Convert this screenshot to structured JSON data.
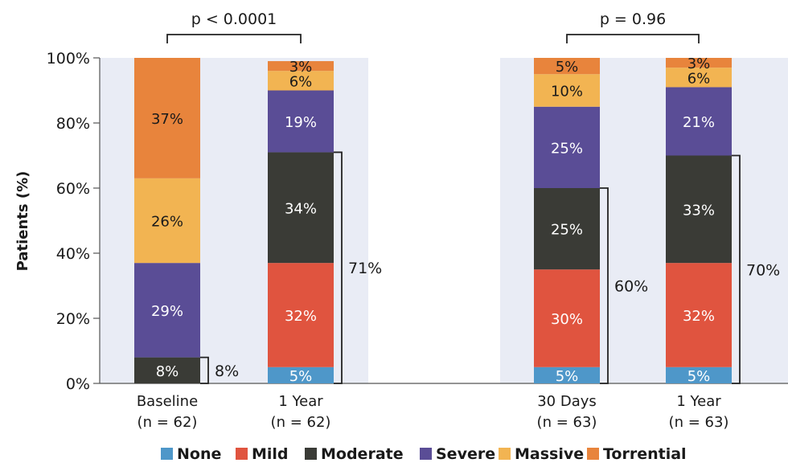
{
  "chart_data": {
    "type": "bar",
    "stacked": true,
    "ylabel": "Patients (%)",
    "ylim": [
      0,
      100
    ],
    "yticks": [
      "0%",
      "20%",
      "40%",
      "60%",
      "80%",
      "100%"
    ],
    "grid": false,
    "legend_position": "bottom",
    "categories": [
      {
        "line1": "Baseline",
        "line2": "(n = 62)"
      },
      {
        "line1": "1 Year",
        "line2": "(n = 62)"
      },
      {
        "line1": "30 Days",
        "line2": "(n = 63)"
      },
      {
        "line1": "1 Year",
        "line2": "(n = 63)"
      }
    ],
    "series": [
      {
        "name": "None",
        "color": "#4e97c9",
        "values": [
          0,
          5,
          5,
          5
        ],
        "labels": [
          "",
          "5%",
          "5%",
          "5%"
        ]
      },
      {
        "name": "Mild",
        "color": "#e0543f",
        "values": [
          0,
          32,
          30,
          32
        ],
        "labels": [
          "",
          "32%",
          "30%",
          "32%"
        ]
      },
      {
        "name": "Moderate",
        "color": "#3a3b36",
        "values": [
          8,
          34,
          25,
          33
        ],
        "labels": [
          "8%",
          "34%",
          "25%",
          "33%"
        ]
      },
      {
        "name": "Severe",
        "color": "#5a4d96",
        "values": [
          29,
          19,
          25,
          21
        ],
        "labels": [
          "29%",
          "19%",
          "25%",
          "21%"
        ]
      },
      {
        "name": "Massive",
        "color": "#f2b452",
        "values": [
          26,
          6,
          10,
          6
        ],
        "labels": [
          "26%",
          "6%",
          "10%",
          "6%"
        ]
      },
      {
        "name": "Torrential",
        "color": "#e8843c",
        "values": [
          37,
          3,
          5,
          3
        ],
        "labels": [
          "37%",
          "3%",
          "5%",
          "3%"
        ]
      }
    ],
    "background_color": "#e9ecf5",
    "brackets": [
      {
        "bar": 0,
        "from": 0,
        "to": 8,
        "label": "8%"
      },
      {
        "bar": 1,
        "from": 0,
        "to": 71,
        "label": "71%"
      },
      {
        "bar": 2,
        "from": 0,
        "to": 60,
        "label": "60%"
      },
      {
        "bar": 3,
        "from": 0,
        "to": 70,
        "label": "70%"
      }
    ],
    "comparisons": [
      {
        "bars": [
          0,
          1
        ],
        "label": "p < 0.0001"
      },
      {
        "bars": [
          2,
          3
        ],
        "label": "p = 0.96"
      }
    ]
  }
}
